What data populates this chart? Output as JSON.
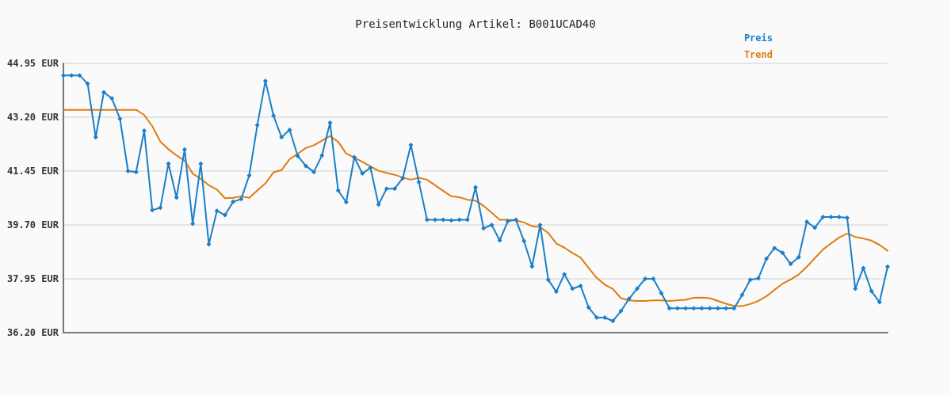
{
  "chart_data": {
    "type": "line",
    "title": "Preisentwicklung Artikel: B001UCAD40",
    "categories": [
      null,
      null,
      null,
      null,
      null,
      null,
      null,
      null,
      null,
      null,
      null,
      null,
      null,
      null,
      null,
      null,
      null,
      null,
      null,
      null,
      null,
      null,
      null,
      null,
      null,
      null,
      null,
      null,
      null,
      null,
      null,
      null,
      null,
      null,
      null,
      null,
      null,
      null,
      null,
      null,
      null,
      null,
      null,
      null,
      null,
      null,
      null,
      null,
      null,
      null,
      null,
      null,
      null,
      null,
      null,
      null,
      null,
      null,
      null,
      null,
      null,
      null,
      null,
      null,
      null,
      null,
      null,
      null,
      null,
      null,
      null,
      null,
      null,
      null,
      null,
      null,
      null,
      null,
      null,
      null,
      null,
      null,
      null,
      null,
      null,
      null,
      null,
      null,
      null,
      null,
      null,
      null,
      null,
      null,
      null,
      null,
      null,
      null,
      null,
      null,
      null,
      null,
      null
    ],
    "series": [
      {
        "name": "Preis",
        "color": "#1a7fc8",
        "marker": "diamond",
        "values": [
          44.56,
          44.56,
          44.56,
          44.29,
          42.55,
          44.01,
          43.81,
          43.15,
          41.45,
          41.42,
          42.76,
          40.18,
          40.26,
          41.69,
          40.59,
          42.15,
          39.74,
          41.69,
          39.07,
          40.16,
          40.02,
          40.45,
          40.54,
          41.31,
          42.94,
          44.38,
          43.25,
          42.55,
          42.79,
          41.94,
          41.62,
          41.42,
          41.96,
          43.02,
          40.82,
          40.44,
          41.9,
          41.37,
          41.56,
          40.36,
          40.88,
          40.88,
          41.22,
          42.3,
          41.09,
          39.87,
          39.87,
          39.87,
          39.85,
          39.87,
          39.87,
          40.92,
          39.59,
          39.7,
          39.2,
          39.82,
          39.87,
          39.18,
          38.35,
          39.7,
          37.92,
          37.53,
          38.1,
          37.63,
          37.72,
          37.02,
          36.69,
          36.69,
          36.58,
          36.9,
          37.3,
          37.63,
          37.95,
          37.95,
          37.48,
          36.99,
          36.99,
          36.99,
          36.99,
          36.99,
          36.99,
          36.99,
          36.99,
          36.99,
          37.43,
          37.92,
          37.96,
          38.6,
          38.95,
          38.79,
          38.43,
          38.65,
          39.8,
          39.61,
          39.96,
          39.96,
          39.96,
          39.93,
          37.63,
          38.3,
          37.55,
          37.19,
          38.34
        ]
      },
      {
        "name": "Trend",
        "color": "#e07c10",
        "marker": "none",
        "values": [
          43.44,
          43.44,
          43.44,
          43.44,
          43.44,
          43.44,
          43.44,
          43.44,
          43.44,
          43.44,
          43.27,
          42.91,
          42.41,
          42.16,
          41.96,
          41.79,
          41.37,
          41.2,
          40.99,
          40.85,
          40.57,
          40.58,
          40.63,
          40.58,
          40.82,
          41.05,
          41.41,
          41.48,
          41.84,
          42.01,
          42.2,
          42.29,
          42.44,
          42.59,
          42.4,
          42.02,
          41.89,
          41.75,
          41.6,
          41.46,
          41.39,
          41.33,
          41.24,
          41.17,
          41.23,
          41.17,
          40.99,
          40.81,
          40.63,
          40.6,
          40.52,
          40.49,
          40.32,
          40.1,
          39.87,
          39.87,
          39.85,
          39.78,
          39.66,
          39.63,
          39.44,
          39.1,
          38.96,
          38.79,
          38.64,
          38.3,
          37.98,
          37.76,
          37.62,
          37.32,
          37.25,
          37.23,
          37.23,
          37.25,
          37.25,
          37.23,
          37.25,
          37.27,
          37.33,
          37.34,
          37.32,
          37.23,
          37.14,
          37.07,
          37.06,
          37.13,
          37.23,
          37.38,
          37.59,
          37.79,
          37.93,
          38.09,
          38.34,
          38.62,
          38.9,
          39.1,
          39.29,
          39.42,
          39.31,
          39.26,
          39.19,
          39.05,
          38.86
        ]
      }
    ],
    "ylim": [
      36.2,
      44.95
    ],
    "yticks": [
      {
        "value": 36.2,
        "label": "36.20 EUR"
      },
      {
        "value": 37.95,
        "label": "37.95 EUR"
      },
      {
        "value": 39.7,
        "label": "39.70 EUR"
      },
      {
        "value": 41.45,
        "label": "41.45 EUR"
      },
      {
        "value": 43.2,
        "label": "43.20 EUR"
      },
      {
        "value": 44.95,
        "label": "44.95 EUR"
      }
    ],
    "grid": "y",
    "legend": "top right",
    "line_style": "solid",
    "tick_labels": "y"
  }
}
